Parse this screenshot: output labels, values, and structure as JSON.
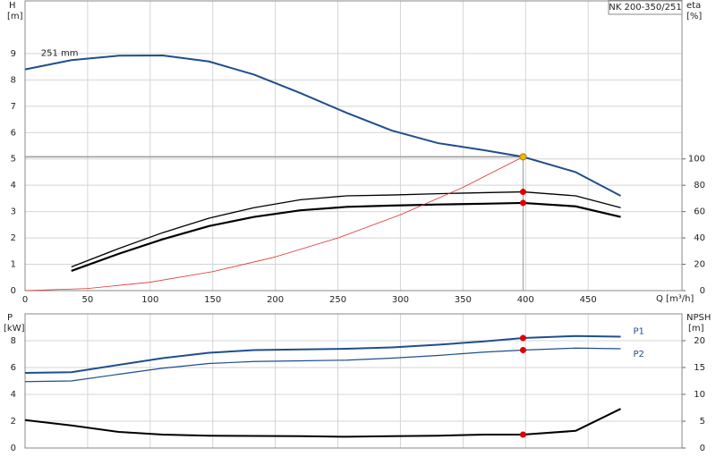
{
  "chart_data": [
    {
      "type": "line",
      "title": "NK 200-350/251",
      "x_label": "Q [m³/h]",
      "y_label": [
        "H",
        "[m]"
      ],
      "y2_label": [
        "eta",
        "[%]"
      ],
      "xlim": [
        0,
        525
      ],
      "xticks": [
        0,
        50,
        100,
        150,
        200,
        250,
        300,
        350,
        400,
        450
      ],
      "ylim": [
        0,
        11
      ],
      "yticks": [
        0,
        1,
        2,
        3,
        4,
        5,
        6,
        7,
        8,
        9
      ],
      "y2lim": [
        0,
        220
      ],
      "y2ticks": [
        0,
        20,
        40,
        60,
        80,
        100
      ],
      "grid": true,
      "series": [
        {
          "name": "251 mm",
          "color": "#1f4e8c",
          "width": 2,
          "x": [
            0,
            37,
            75,
            110,
            147,
            183,
            220,
            257,
            293,
            330,
            367,
            398,
            440,
            476
          ],
          "values": [
            8.4,
            8.75,
            8.92,
            8.93,
            8.7,
            8.2,
            7.5,
            6.75,
            6.08,
            5.6,
            5.33,
            5.08,
            4.5,
            3.6
          ]
        },
        {
          "color": "#000000",
          "width": 1.3,
          "axis": "y2",
          "x": [
            37,
            75,
            110,
            147,
            183,
            220,
            257,
            293,
            330,
            367,
            398,
            440,
            476
          ],
          "values": [
            18,
            32,
            44,
            55,
            63,
            69,
            72,
            72.6,
            73.6,
            74.4,
            75,
            72,
            63
          ]
        },
        {
          "color": "#000000",
          "width": 2.2,
          "axis": "y2",
          "x": [
            37,
            75,
            110,
            147,
            183,
            220,
            257,
            293,
            330,
            367,
            398,
            440,
            476
          ],
          "values": [
            15,
            28,
            39,
            49,
            56,
            61,
            63.6,
            64.6,
            65.4,
            66,
            66.6,
            64,
            56
          ]
        },
        {
          "color": "#e03030",
          "width": 0.8,
          "x": [
            0,
            50,
            100,
            150,
            200,
            250,
            300,
            350,
            398
          ],
          "values": [
            0,
            0.08,
            0.32,
            0.72,
            1.28,
            2.0,
            2.88,
            3.92,
            5.08
          ]
        }
      ],
      "duty_point": {
        "x": 398,
        "y": 5.08,
        "color": "#f5b800"
      },
      "markers": [
        {
          "x": 398,
          "y": 75,
          "axis": "y2",
          "color": "#e00000"
        },
        {
          "x": 398,
          "y": 66.6,
          "axis": "y2",
          "color": "#e00000"
        }
      ]
    },
    {
      "type": "line",
      "y_label": [
        "P",
        "[kW]"
      ],
      "y2_label": [
        "NPSH",
        "[m]"
      ],
      "xlim": [
        0,
        525
      ],
      "ylim": [
        0,
        10
      ],
      "yticks": [
        0,
        2,
        4,
        6,
        8
      ],
      "y2lim": [
        0,
        25
      ],
      "y2ticks": [
        0,
        5,
        10,
        15,
        20
      ],
      "grid": true,
      "series": [
        {
          "name": "P1",
          "color": "#1f4e8c",
          "width": 2,
          "x": [
            0,
            37,
            75,
            110,
            147,
            183,
            220,
            257,
            293,
            330,
            367,
            398,
            440,
            476
          ],
          "values": [
            5.6,
            5.65,
            6.2,
            6.7,
            7.1,
            7.3,
            7.35,
            7.4,
            7.5,
            7.7,
            7.95,
            8.2,
            8.35,
            8.3
          ]
        },
        {
          "name": "P2",
          "color": "#1f4e8c",
          "width": 1.2,
          "x": [
            0,
            37,
            75,
            110,
            147,
            183,
            220,
            257,
            293,
            330,
            367,
            398,
            440,
            476
          ],
          "values": [
            4.95,
            5.0,
            5.5,
            5.95,
            6.3,
            6.45,
            6.5,
            6.55,
            6.7,
            6.9,
            7.15,
            7.3,
            7.45,
            7.4
          ]
        },
        {
          "color": "#000000",
          "width": 2,
          "axis": "y2",
          "x": [
            0,
            37,
            75,
            110,
            147,
            183,
            220,
            257,
            293,
            330,
            367,
            398,
            440,
            476
          ],
          "values": [
            5.2,
            4.2,
            3.0,
            2.5,
            2.3,
            2.25,
            2.2,
            2.1,
            2.2,
            2.3,
            2.5,
            2.5,
            3.2,
            7.3
          ]
        }
      ],
      "markers": [
        {
          "x": 398,
          "y": 8.2,
          "color": "#e00000"
        },
        {
          "x": 398,
          "y": 7.3,
          "color": "#e00000"
        },
        {
          "x": 398,
          "y": 2.5,
          "axis": "y2",
          "color": "#e00000"
        }
      ]
    }
  ]
}
